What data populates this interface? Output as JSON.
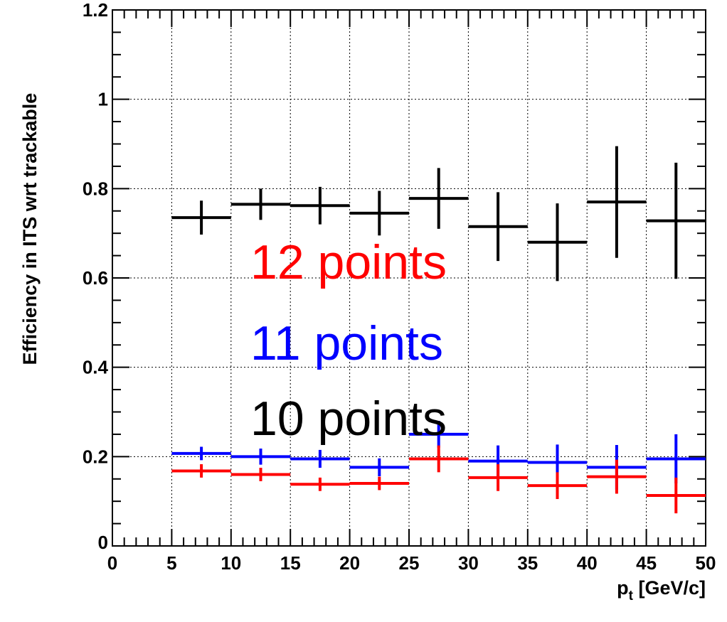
{
  "chart_data": {
    "type": "line",
    "xlabel_main": "p",
    "xlabel_sub": "t",
    "xlabel_rest": " [GeV/c]",
    "ylabel": "Efficiency in ITS wrt trackable",
    "xlim": [
      0,
      50
    ],
    "ylim": [
      0,
      1.2
    ],
    "grid": true,
    "x_ticks": [
      {
        "value": 0,
        "label": "0"
      },
      {
        "value": 5,
        "label": "5"
      },
      {
        "value": 10,
        "label": "10"
      },
      {
        "value": 15,
        "label": "15"
      },
      {
        "value": 20,
        "label": "20"
      },
      {
        "value": 25,
        "label": "25"
      },
      {
        "value": 30,
        "label": "30"
      },
      {
        "value": 35,
        "label": "35"
      },
      {
        "value": 40,
        "label": "40"
      },
      {
        "value": 45,
        "label": "45"
      },
      {
        "value": 50,
        "label": "50"
      }
    ],
    "y_ticks": [
      {
        "value": 0,
        "label": "0"
      },
      {
        "value": 0.2,
        "label": "0.2"
      },
      {
        "value": 0.4,
        "label": "0.4"
      },
      {
        "value": 0.6,
        "label": "0.6"
      },
      {
        "value": 0.8,
        "label": "0.8"
      },
      {
        "value": 1.0,
        "label": "1"
      },
      {
        "value": 1.2,
        "label": "1.2"
      }
    ],
    "bins": [
      [
        5,
        10
      ],
      [
        10,
        15
      ],
      [
        15,
        20
      ],
      [
        20,
        25
      ],
      [
        25,
        30
      ],
      [
        30,
        35
      ],
      [
        35,
        40
      ],
      [
        40,
        45
      ],
      [
        45,
        50
      ]
    ],
    "series": [
      {
        "name": "10 points",
        "color": "#000000",
        "values": [
          0.735,
          0.765,
          0.762,
          0.745,
          0.778,
          0.715,
          0.68,
          0.77,
          0.728
        ],
        "errors": [
          0.038,
          0.035,
          0.042,
          0.05,
          0.068,
          0.077,
          0.087,
          0.125,
          0.13
        ]
      },
      {
        "name": "11 points",
        "color": "#0000ff",
        "values": [
          0.207,
          0.2,
          0.195,
          0.176,
          0.25,
          0.19,
          0.187,
          0.176,
          0.195
        ],
        "errors": [
          0.015,
          0.018,
          0.02,
          0.02,
          0.03,
          0.035,
          0.04,
          0.05,
          0.055
        ]
      },
      {
        "name": "12 points",
        "color": "#ff0000",
        "values": [
          0.168,
          0.16,
          0.138,
          0.14,
          0.195,
          0.153,
          0.135,
          0.155,
          0.113
        ],
        "errors": [
          0.015,
          0.015,
          0.015,
          0.015,
          0.03,
          0.03,
          0.03,
          0.038,
          0.04
        ]
      }
    ],
    "annotations": [
      {
        "text": "12 points",
        "color": "#ff0000"
      },
      {
        "text": "11 points",
        "color": "#0000ff"
      },
      {
        "text": "10 points",
        "color": "#000000"
      }
    ]
  }
}
